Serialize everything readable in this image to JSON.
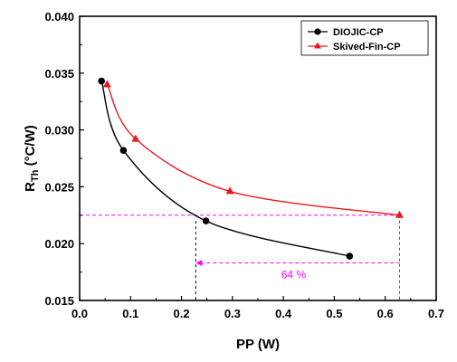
{
  "chart_data": {
    "type": "line",
    "xlabel": "PP (W)",
    "ylabel_main": "R",
    "ylabel_sub": "Th",
    "ylabel_unit": " (°C/W)",
    "xlim": [
      0.0,
      0.7
    ],
    "ylim": [
      0.015,
      0.04
    ],
    "xticks": [
      "0.0",
      "0.1",
      "0.2",
      "0.3",
      "0.4",
      "0.5",
      "0.6",
      "0.7"
    ],
    "yticks": [
      "0.015",
      "0.020",
      "0.025",
      "0.030",
      "0.035",
      "0.040"
    ],
    "grid": false,
    "legend_position": "top-right",
    "series": [
      {
        "name": "DIOJIC-CP",
        "color": "#000000",
        "marker": "circle",
        "points": [
          [
            0.043,
            0.0343
          ],
          [
            0.086,
            0.0282
          ],
          [
            0.248,
            0.022
          ],
          [
            0.53,
            0.0189
          ]
        ]
      },
      {
        "name": "Skived-Fin-CP",
        "color": "#e8191e",
        "marker": "triangle",
        "points": [
          [
            0.054,
            0.034
          ],
          [
            0.11,
            0.0292
          ],
          [
            0.295,
            0.0246
          ],
          [
            0.628,
            0.0225
          ]
        ]
      }
    ],
    "annotations": {
      "color": "#ff00ff",
      "text": "64 %",
      "hline_y": 0.0225,
      "vline_black_x": 0.228,
      "vline_red_x": 0.628,
      "arrow_y": 0.0183,
      "arrow_from_x": 0.628,
      "arrow_to_x": 0.228,
      "text_x": 0.42
    }
  }
}
